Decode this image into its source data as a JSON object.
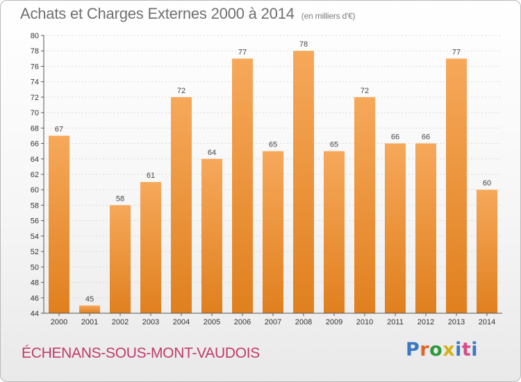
{
  "title": "Achats et Charges Externes 2000 à 2014",
  "subtitle": "(en milliers d'€)",
  "commune": "ÉCHENANS-SOUS-MONT-VAUDOIS",
  "logo": {
    "text": "Proxiti",
    "colors": [
      "#3a78c2",
      "#e0652a",
      "#2f9a3c",
      "#d6b11a",
      "#3a78c2",
      "#d84b8a"
    ]
  },
  "colors": {
    "bar_top": "#f6a85a",
    "bar_bottom": "#e0801f",
    "axis": "#555555",
    "grid": "#d9d9d9",
    "title": "#6f6f6f",
    "commune": "#c0396b"
  },
  "chart_data": {
    "type": "bar",
    "categories": [
      "2000",
      "2001",
      "2002",
      "2003",
      "2004",
      "2005",
      "2006",
      "2007",
      "2008",
      "2009",
      "2010",
      "2011",
      "2012",
      "2013",
      "2014"
    ],
    "values": [
      67,
      45,
      58,
      61,
      72,
      64,
      77,
      65,
      78,
      65,
      72,
      66,
      66,
      77,
      60
    ],
    "ylim": [
      44,
      80
    ],
    "yticks": [
      44,
      46,
      48,
      50,
      52,
      54,
      56,
      58,
      60,
      62,
      64,
      66,
      68,
      70,
      72,
      74,
      76,
      78,
      80
    ],
    "grid": true,
    "legend": "none",
    "data_labels": true
  }
}
